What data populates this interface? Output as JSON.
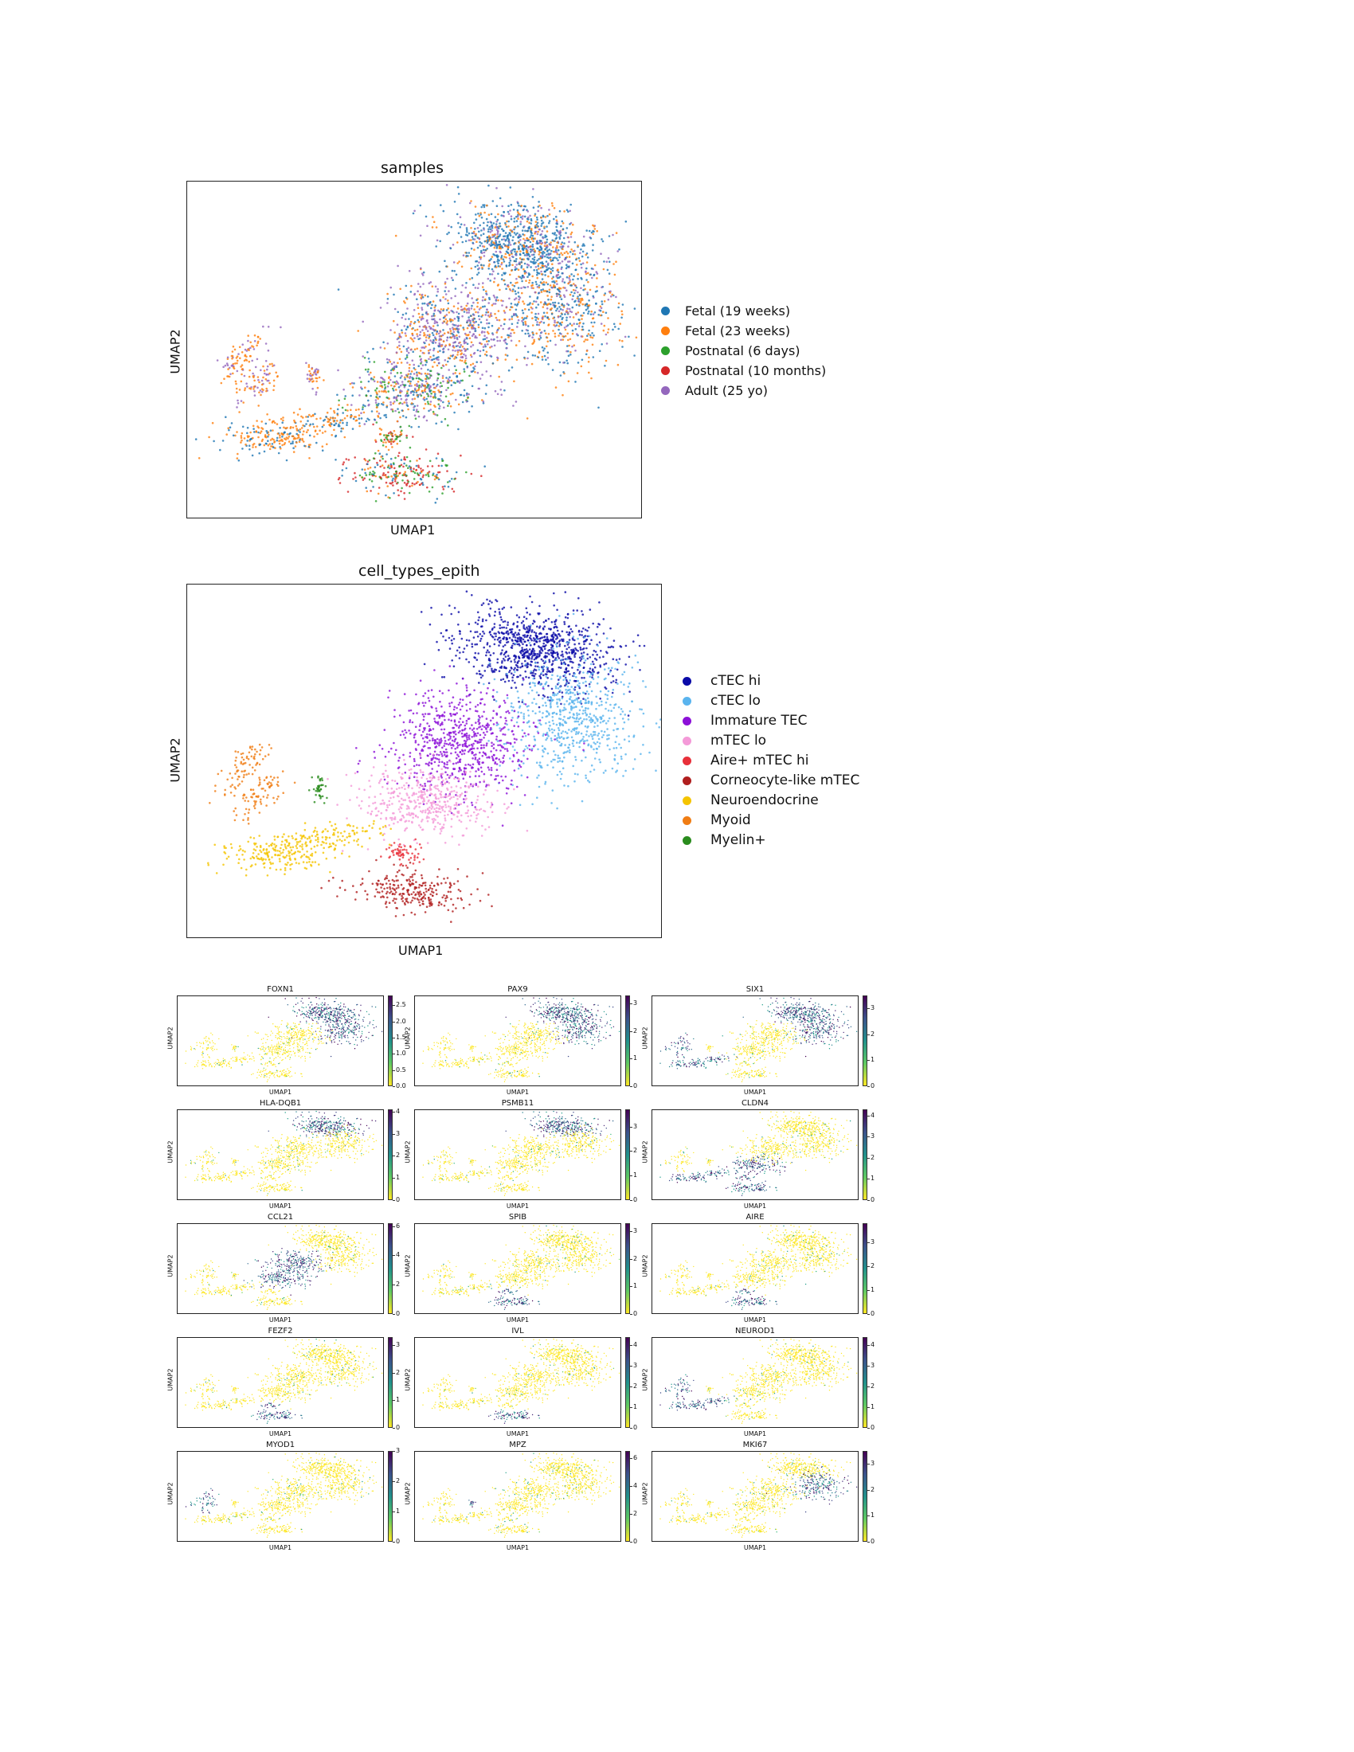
{
  "chart_data": [
    {
      "type": "scatter",
      "title": "samples",
      "xlabel": "UMAP1",
      "ylabel": "UMAP2",
      "ticks": "none",
      "legend_position": "right",
      "series": [
        {
          "name": "Fetal (19 weeks)",
          "color": "#1f77b4"
        },
        {
          "name": "Fetal (23 weeks)",
          "color": "#ff7f0e"
        },
        {
          "name": "Postnatal (6 days)",
          "color": "#2ca02c"
        },
        {
          "name": "Postnatal (10 months)",
          "color": "#d62728"
        },
        {
          "name": "Adult (25 yo)",
          "color": "#9467bd"
        }
      ]
    },
    {
      "type": "scatter",
      "title": "cell_types_epith",
      "xlabel": "UMAP1",
      "ylabel": "UMAP2",
      "ticks": "none",
      "legend_position": "right",
      "series": [
        {
          "name": "cTEC hi",
          "color": "#0a0aa8"
        },
        {
          "name": "cTEC lo",
          "color": "#5ab4ee"
        },
        {
          "name": "Immature TEC",
          "color": "#8c10d8"
        },
        {
          "name": "mTEC lo",
          "color": "#f49ad8"
        },
        {
          "name": "Aire+ mTEC hi",
          "color": "#e8303a"
        },
        {
          "name": "Corneocyte-like mTEC",
          "color": "#b01e1e"
        },
        {
          "name": "Neuroendocrine",
          "color": "#f5c400"
        },
        {
          "name": "Myoid",
          "color": "#f07d14"
        },
        {
          "name": "Myelin+",
          "color": "#2a8c1e"
        }
      ]
    },
    {
      "type": "scatter",
      "layout": "grid 5x3",
      "xlabel": "UMAP1",
      "ylabel": "UMAP2",
      "colormap": "viridis_r",
      "panels": [
        {
          "gene": "FOXN1",
          "ticks": [
            "0.0",
            "0.5",
            "1.0",
            "1.5",
            "2.0",
            "2.5"
          ],
          "max": 2.8,
          "high_region": "ctec"
        },
        {
          "gene": "PAX9",
          "ticks": [
            "0",
            "1",
            "2",
            "3"
          ],
          "max": 3.3,
          "high_region": "ctec"
        },
        {
          "gene": "SIX1",
          "ticks": [
            "0",
            "1",
            "2",
            "3"
          ],
          "max": 3.5,
          "high_region": "ctec_myoid"
        },
        {
          "gene": "HLA-DQB1",
          "ticks": [
            "0",
            "1",
            "2",
            "3",
            "4"
          ],
          "max": 4.1,
          "high_region": "ctec_hi"
        },
        {
          "gene": "PSMB11",
          "ticks": [
            "0",
            "1",
            "2",
            "3"
          ],
          "max": 3.7,
          "high_region": "ctec_hi"
        },
        {
          "gene": "CLDN4",
          "ticks": [
            "0",
            "1",
            "2",
            "3",
            "4"
          ],
          "max": 4.3,
          "high_region": "mtec"
        },
        {
          "gene": "CCL21",
          "ticks": [
            "0",
            "2",
            "4",
            "6"
          ],
          "max": 6.2,
          "high_region": "mtec_lo"
        },
        {
          "gene": "SPIB",
          "ticks": [
            "0",
            "1",
            "2",
            "3"
          ],
          "max": 3.3,
          "high_region": "aire"
        },
        {
          "gene": "AIRE",
          "ticks": [
            "0",
            "1",
            "2",
            "3"
          ],
          "max": 3.8,
          "high_region": "aire"
        },
        {
          "gene": "FEZF2",
          "ticks": [
            "0",
            "1",
            "2",
            "3"
          ],
          "max": 3.3,
          "high_region": "aire"
        },
        {
          "gene": "IVL",
          "ticks": [
            "0",
            "1",
            "2",
            "3",
            "4"
          ],
          "max": 4.4,
          "high_region": "corneo"
        },
        {
          "gene": "NEUROD1",
          "ticks": [
            "0",
            "1",
            "2",
            "3",
            "4"
          ],
          "max": 4.4,
          "high_region": "neuro"
        },
        {
          "gene": "MYOD1",
          "ticks": [
            "0",
            "1",
            "2",
            "3"
          ],
          "max": 3.0,
          "high_region": "myoid"
        },
        {
          "gene": "MPZ",
          "ticks": [
            "0",
            "2",
            "4",
            "6"
          ],
          "max": 6.5,
          "high_region": "myelin"
        },
        {
          "gene": "MKI67",
          "ticks": [
            "0",
            "1",
            "2",
            "3"
          ],
          "max": 3.5,
          "high_region": "ctec_lo"
        }
      ]
    }
  ]
}
